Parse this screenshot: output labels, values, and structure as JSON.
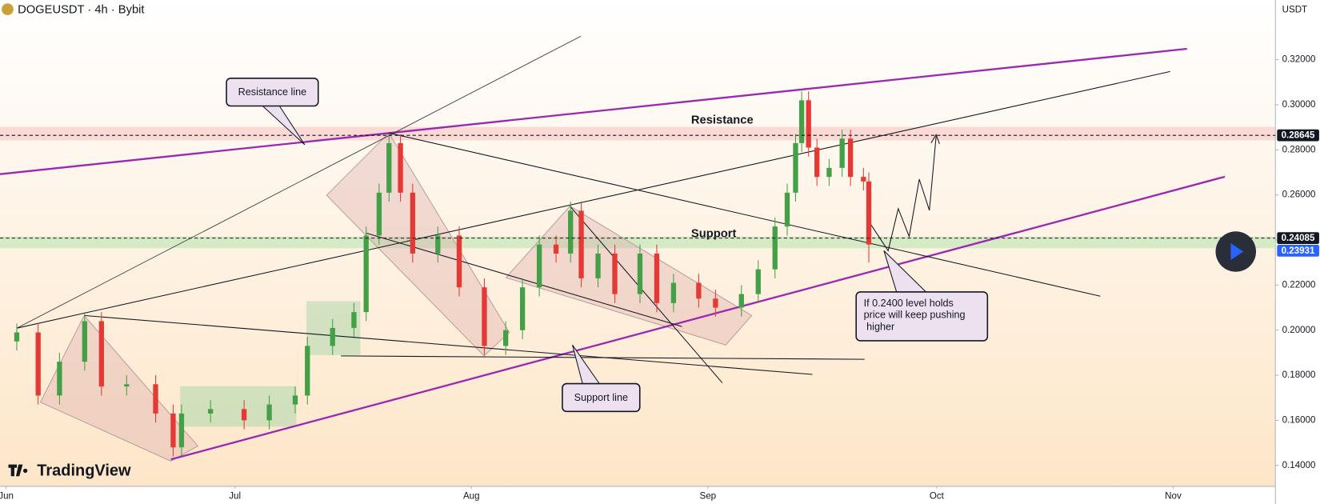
{
  "header": {
    "title": "DOGEUSDT · 4h · Bybit",
    "currency": "USDT",
    "brand": "TradingView"
  },
  "chart_data": {
    "type": "candlestick",
    "x": [
      1.4,
      4.2,
      7.0,
      10.3,
      12.5,
      15.8,
      19.6,
      21.9,
      23.0,
      26.8,
      31.2,
      34.5,
      37.9,
      39.5,
      42.8,
      45.6,
      47.2,
      48.9,
      50.2,
      51.7,
      53.3,
      56.6,
      59.4,
      62.7,
      65.5,
      67.7,
      69.9,
      72.1,
      74.0,
      75.4,
      77.6,
      79.8,
      83.1,
      85.3,
      87.5,
      90.8,
      93.0,
      96.4,
      98.6,
      100.8,
      102.4,
      103.5,
      104.3,
      105.2,
      106.3,
      107.9,
      109.6,
      110.7,
      112.4,
      113.1
    ],
    "open": [
      0.195,
      0.199,
      0.171,
      0.186,
      0.204,
      0.175,
      0.176,
      0.163,
      0.148,
      0.163,
      0.165,
      0.16,
      0.167,
      0.171,
      0.193,
      0.201,
      0.208,
      0.242,
      0.261,
      0.283,
      0.261,
      0.234,
      0.242,
      0.219,
      0.193,
      0.2,
      0.219,
      0.238,
      0.234,
      0.253,
      0.223,
      0.234,
      0.216,
      0.234,
      0.212,
      0.221,
      0.214,
      0.21,
      0.216,
      0.227,
      0.246,
      0.261,
      0.283,
      0.302,
      0.281,
      0.268,
      0.272,
      0.285,
      0.268,
      0.266
    ],
    "high": [
      0.203,
      0.203,
      0.19,
      0.208,
      0.208,
      0.18,
      0.18,
      0.167,
      0.167,
      0.169,
      0.169,
      0.171,
      0.175,
      0.197,
      0.205,
      0.212,
      0.246,
      0.265,
      0.287,
      0.287,
      0.265,
      0.246,
      0.246,
      0.223,
      0.204,
      0.223,
      0.242,
      0.242,
      0.257,
      0.257,
      0.238,
      0.238,
      0.238,
      0.238,
      0.225,
      0.225,
      0.218,
      0.22,
      0.231,
      0.25,
      0.265,
      0.287,
      0.306,
      0.306,
      0.285,
      0.276,
      0.289,
      0.289,
      0.272,
      0.27
    ],
    "low": [
      0.191,
      0.167,
      0.167,
      0.182,
      0.171,
      0.171,
      0.159,
      0.144,
      0.144,
      0.159,
      0.156,
      0.156,
      0.163,
      0.167,
      0.189,
      0.197,
      0.204,
      0.238,
      0.257,
      0.257,
      0.23,
      0.23,
      0.215,
      0.189,
      0.189,
      0.196,
      0.215,
      0.23,
      0.23,
      0.219,
      0.219,
      0.212,
      0.212,
      0.208,
      0.208,
      0.21,
      0.206,
      0.206,
      0.212,
      0.223,
      0.242,
      0.257,
      0.279,
      0.277,
      0.264,
      0.264,
      0.268,
      0.264,
      0.262,
      0.23
    ],
    "close": [
      0.199,
      0.171,
      0.186,
      0.204,
      0.175,
      0.176,
      0.163,
      0.148,
      0.163,
      0.165,
      0.16,
      0.167,
      0.171,
      0.193,
      0.201,
      0.208,
      0.242,
      0.261,
      0.283,
      0.261,
      0.234,
      0.242,
      0.219,
      0.193,
      0.2,
      0.219,
      0.238,
      0.234,
      0.253,
      0.223,
      0.234,
      0.216,
      0.234,
      0.212,
      0.221,
      0.214,
      0.21,
      0.216,
      0.227,
      0.246,
      0.261,
      0.283,
      0.302,
      0.281,
      0.268,
      0.272,
      0.285,
      0.268,
      0.266,
      0.238
    ],
    "up_color": "#43a047",
    "down_color": "#e53935",
    "xlim": [
      -0.8,
      166.4
    ],
    "xticks": [
      {
        "value": 0,
        "label": "Jun"
      },
      {
        "value": 30,
        "label": "Jul"
      },
      {
        "value": 61,
        "label": "Aug"
      },
      {
        "value": 92,
        "label": "Sep"
      },
      {
        "value": 122,
        "label": "Oct"
      },
      {
        "value": 153,
        "label": "Nov"
      }
    ],
    "ylim": [
      0.1307,
      0.3465
    ],
    "yticks": [
      {
        "value": 0.14,
        "label": "0.14000"
      },
      {
        "value": 0.16,
        "label": "0.16000"
      },
      {
        "value": 0.18,
        "label": "0.18000"
      },
      {
        "value": 0.2,
        "label": "0.20000"
      },
      {
        "value": 0.22,
        "label": "0.22000"
      },
      {
        "value": 0.24,
        "label": "0.24000"
      },
      {
        "value": 0.26,
        "label": "0.26000"
      },
      {
        "value": 0.28,
        "label": "0.28000"
      },
      {
        "value": 0.3,
        "label": "0.30000"
      },
      {
        "value": 0.32,
        "label": "0.32000"
      }
    ],
    "price_lines": [
      {
        "value": 0.28645,
        "color": "#131722"
      },
      {
        "value": 0.24085,
        "color": "#131722"
      },
      {
        "value": 0.23931,
        "color": "#2962ff"
      }
    ],
    "annotations": {
      "resistance_line": "Resistance line",
      "support_line": "Support line",
      "resistance": "Resistance",
      "support": "Support",
      "note": [
        "If 0.2400 level holds",
        "price will keep pushing",
        " higher"
      ]
    }
  }
}
